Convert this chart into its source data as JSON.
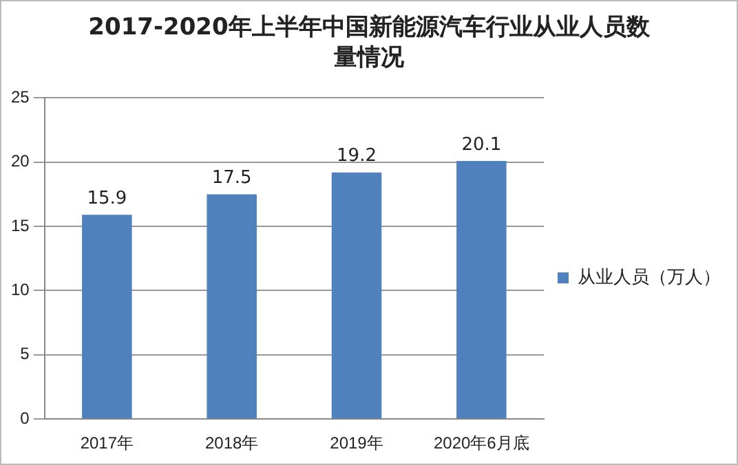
{
  "chart_data": {
    "type": "bar",
    "title": "2017-2020年上半年中国新能源汽车行业从业人员数量情况",
    "categories": [
      "2017年",
      "2018年",
      "2019年",
      "2020年6月底"
    ],
    "series": [
      {
        "name": "从业人员（万人）",
        "color": "#4f81bd",
        "values": [
          15.9,
          17.5,
          19.2,
          20.1
        ]
      }
    ],
    "ylim": [
      0,
      25
    ],
    "yticks": [
      0,
      5,
      10,
      15,
      20,
      25
    ],
    "grid": "y",
    "legend": "right",
    "data_labels": true
  }
}
